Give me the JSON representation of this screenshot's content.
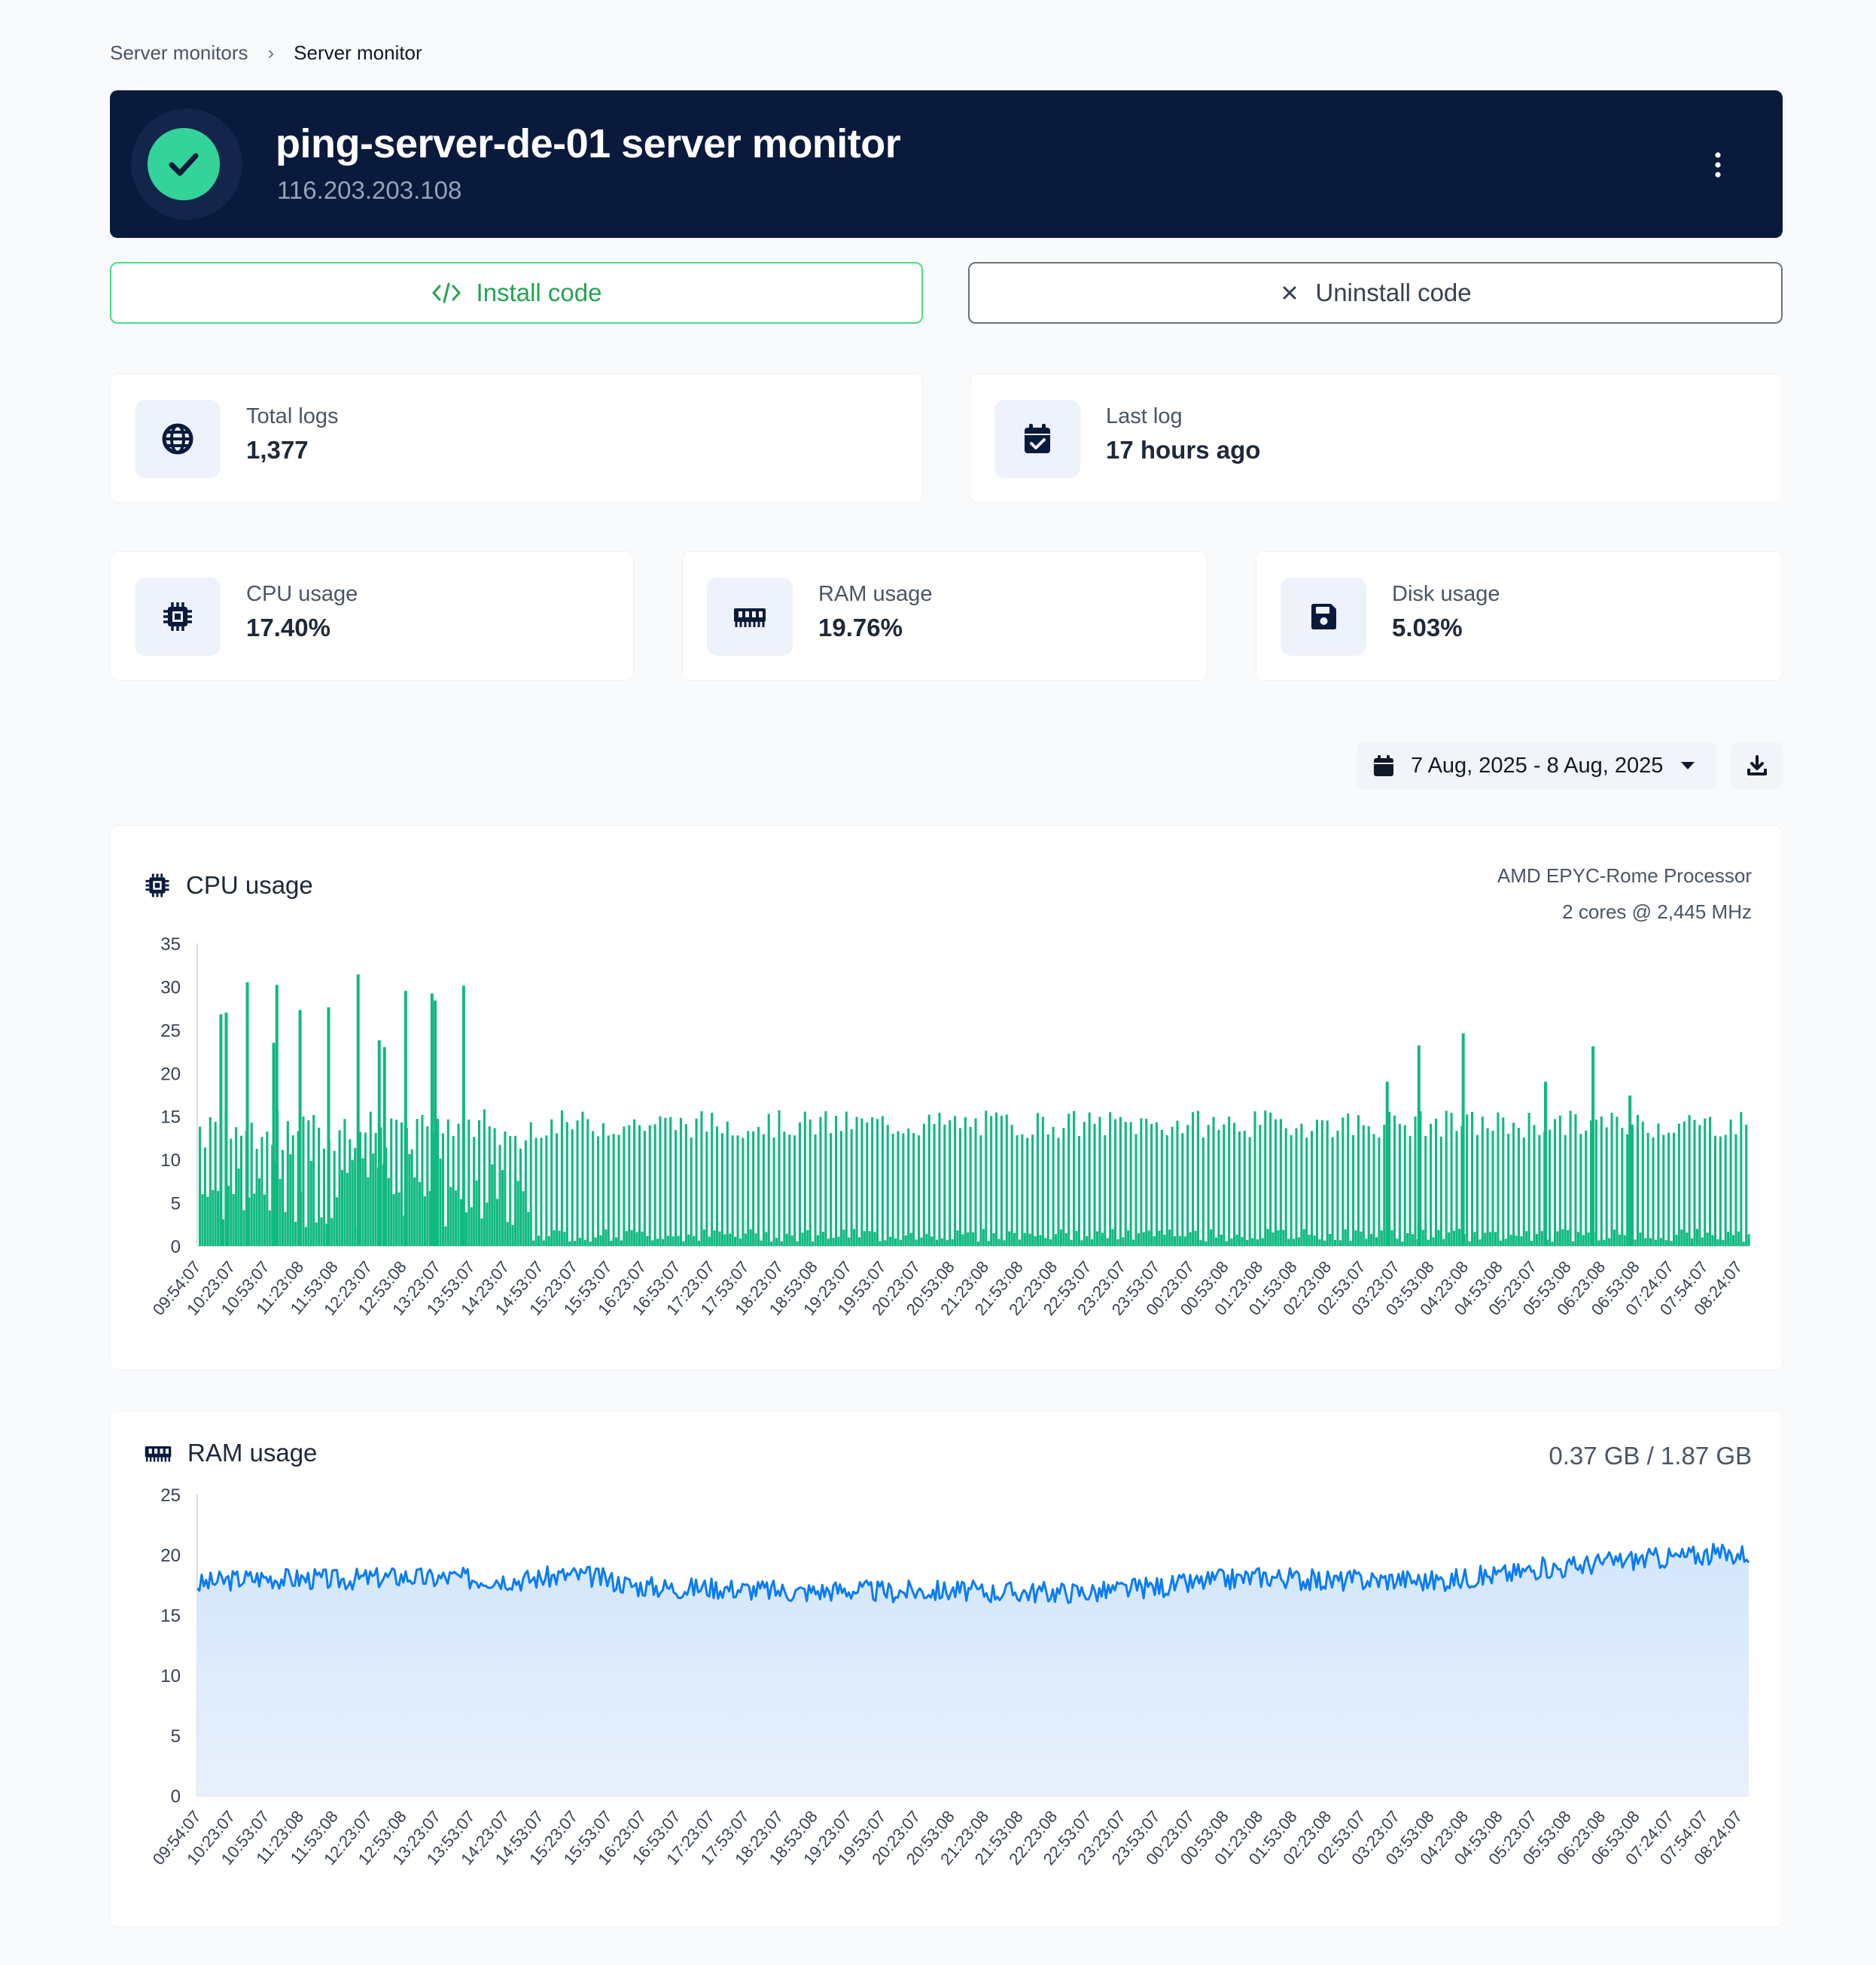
{
  "breadcrumb": {
    "parent": "Server monitors",
    "separator": "›",
    "current": "Server monitor"
  },
  "header": {
    "title": "ping-server-de-01 server monitor",
    "ip": "116.203.203.108",
    "status": "ok"
  },
  "actions": {
    "install_label": "Install code",
    "uninstall_label": "Uninstall code"
  },
  "stats": {
    "total_logs": {
      "label": "Total logs",
      "value": "1,377"
    },
    "last_log": {
      "label": "Last log",
      "value": "17 hours ago"
    },
    "cpu": {
      "label": "CPU usage",
      "value": "17.40%"
    },
    "ram": {
      "label": "RAM usage",
      "value": "19.76%"
    },
    "disk": {
      "label": "Disk usage",
      "value": "5.03%"
    }
  },
  "date_range": {
    "label": "7 Aug, 2025 - 8 Aug, 2025"
  },
  "colors": {
    "header_bg": "#0a1a3c",
    "status_green": "#34d399",
    "install_green": "#22a452",
    "cpu_series": "#10b981",
    "ram_series": "#0b7cf4",
    "ram_fill": "#d3e6fb"
  },
  "cpu_chart": {
    "title": "CPU usage",
    "processor": "AMD EPYC-Rome Processor",
    "cores": "2 cores @ 2,445 MHz"
  },
  "ram_chart": {
    "title": "RAM usage",
    "memory": "0.37 GB / 1.87 GB"
  },
  "chart_data": [
    {
      "type": "bar",
      "title": "CPU usage",
      "ylim": [
        0,
        35
      ],
      "yticks": [
        0,
        5,
        10,
        15,
        20,
        25,
        30,
        35
      ],
      "x_ticks": [
        "09:54:07",
        "10:23:07",
        "10:53:07",
        "11:23:08",
        "11:53:08",
        "12:23:07",
        "12:53:08",
        "13:23:07",
        "13:53:07",
        "14:23:07",
        "14:53:07",
        "15:23:07",
        "15:53:07",
        "16:23:07",
        "16:53:07",
        "17:23:07",
        "17:53:07",
        "18:23:07",
        "18:53:08",
        "19:23:07",
        "19:53:07",
        "20:23:07",
        "20:53:08",
        "21:23:08",
        "21:53:08",
        "22:23:08",
        "22:53:07",
        "23:23:07",
        "23:53:07",
        "00:23:07",
        "00:53:08",
        "01:23:08",
        "01:53:08",
        "02:23:08",
        "02:53:07",
        "03:23:07",
        "03:53:08",
        "04:23:08",
        "04:53:08",
        "05:23:07",
        "05:53:08",
        "06:23:08",
        "06:53:08",
        "07:24:07",
        "07:54:07",
        "08:24:07"
      ],
      "baseline_typical": 14.5,
      "spikes": [
        {
          "x": "10:15",
          "value": 26.8
        },
        {
          "x": "10:20",
          "value": 27.0
        },
        {
          "x": "10:40",
          "value": 30.5
        },
        {
          "x": "11:05",
          "value": 23.5
        },
        {
          "x": "11:08",
          "value": 30.2
        },
        {
          "x": "11:30",
          "value": 27.3
        },
        {
          "x": "11:57",
          "value": 27.6
        },
        {
          "x": "12:25",
          "value": 31.4
        },
        {
          "x": "12:45",
          "value": 23.8
        },
        {
          "x": "12:50",
          "value": 23.0
        },
        {
          "x": "13:10",
          "value": 29.5
        },
        {
          "x": "13:35",
          "value": 29.2
        },
        {
          "x": "13:38",
          "value": 28.4
        },
        {
          "x": "14:05",
          "value": 30.1
        },
        {
          "x": "04:40",
          "value": 19.0
        },
        {
          "x": "05:10",
          "value": 23.2
        },
        {
          "x": "05:52",
          "value": 24.6
        },
        {
          "x": "07:10",
          "value": 19.0
        },
        {
          "x": "07:55",
          "value": 23.1
        },
        {
          "x": "08:30",
          "value": 17.4
        }
      ]
    },
    {
      "type": "area",
      "title": "RAM usage",
      "ylim": [
        0,
        25
      ],
      "yticks": [
        0,
        5,
        10,
        15,
        20,
        25
      ],
      "x_ticks": [
        "09:54:07",
        "10:23:07",
        "10:53:07",
        "11:23:08",
        "11:53:08",
        "12:23:07",
        "12:53:08",
        "13:23:07",
        "13:53:07",
        "14:23:07",
        "14:53:07",
        "15:23:07",
        "15:53:07",
        "16:23:07",
        "16:53:07",
        "17:23:07",
        "17:53:07",
        "18:23:07",
        "18:53:08",
        "19:23:07",
        "19:53:07",
        "20:23:07",
        "20:53:08",
        "21:23:08",
        "21:53:08",
        "22:23:08",
        "22:53:07",
        "23:23:07",
        "23:53:07",
        "00:23:07",
        "00:53:08",
        "01:23:08",
        "01:53:08",
        "02:23:08",
        "02:53:07",
        "03:23:07",
        "03:53:08",
        "04:23:08",
        "04:53:08",
        "05:23:07",
        "05:53:08",
        "06:23:08",
        "06:53:08",
        "07:24:07",
        "07:54:07",
        "08:24:07"
      ],
      "series": [
        {
          "values": [
            17.5,
            17.8,
            18.0,
            18.1,
            18.0,
            18.0,
            17.9,
            18.0,
            18.1,
            18.2,
            18.0,
            18.1,
            18.0,
            18.0,
            17.9,
            18.1,
            18.3,
            18.2,
            17.8,
            17.4,
            17.3,
            17.2,
            17.3,
            17.2,
            17.1,
            17.0,
            16.9,
            17.0,
            17.1,
            17.0,
            16.9,
            17.0,
            17.0,
            17.0,
            16.9,
            16.9,
            16.9,
            16.9,
            16.9,
            16.9,
            17.1,
            17.3,
            17.4,
            17.6,
            17.9,
            18.0,
            18.2,
            18.1,
            17.9,
            17.8,
            17.9,
            17.9,
            18.0,
            17.8,
            17.9,
            18.1,
            18.3,
            18.5,
            18.9,
            18.9,
            19.2,
            19.4,
            19.6,
            19.7,
            19.8,
            20.0,
            20.0,
            20.1
          ]
        }
      ]
    }
  ]
}
